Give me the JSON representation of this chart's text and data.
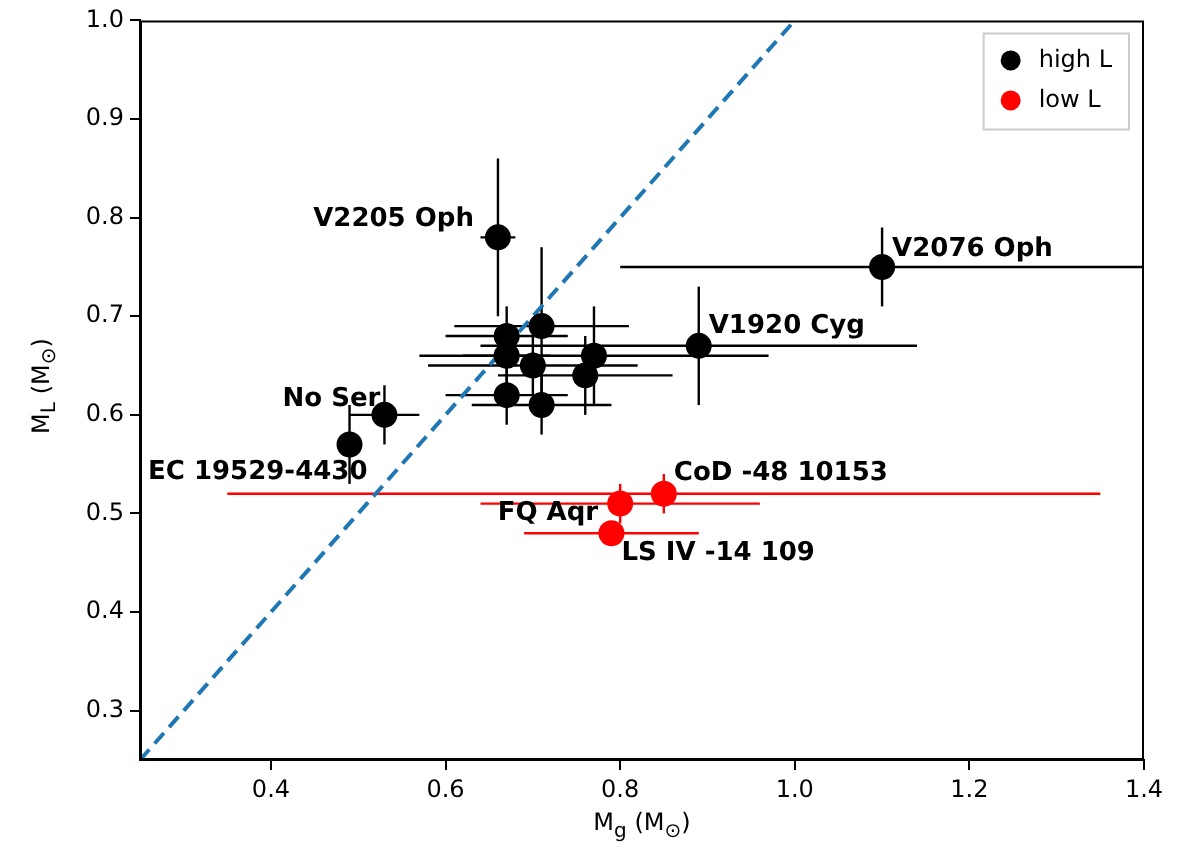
{
  "chart_data": {
    "type": "scatter",
    "xlabel": "M$_{g}$ (M$_{⊙}$)",
    "ylabel": "M$_{L}$ (M$_{⊙}$)",
    "xlim": [
      0.25,
      1.4
    ],
    "ylim": [
      0.25,
      1.0
    ],
    "xticks": [
      0.4,
      0.6,
      0.8,
      {
        "value": 1.0,
        "label": "1.0"
      },
      1.2,
      1.4
    ],
    "yticks": [
      0.3,
      0.4,
      0.5,
      0.6,
      0.7,
      0.8,
      0.9,
      {
        "value": 1.0,
        "label": "1.0"
      }
    ],
    "grid": false,
    "legend": "top right",
    "marker": "circle",
    "series": [
      {
        "name": "high L",
        "color": "#000000",
        "x": [
          0.66,
          0.49,
          0.53,
          0.67,
          0.71,
          0.67,
          0.7,
          0.76,
          0.77,
          0.67,
          0.71,
          0.89,
          1.1
        ],
        "values": [
          0.78,
          0.57,
          0.6,
          0.68,
          0.69,
          0.66,
          0.65,
          0.64,
          0.66,
          0.62,
          0.61,
          0.67,
          0.75
        ],
        "errors": [
          0.08,
          0.04,
          0.03,
          0.03,
          0.08,
          0.03,
          0.03,
          0.04,
          0.05,
          0.03,
          0.03,
          0.06,
          0.04
        ],
        "xerrors": [
          0.02,
          null,
          0.04,
          0.07,
          0.1,
          0.05,
          0.12,
          0.1,
          0.2,
          0.07,
          0.08,
          0.25,
          0.3
        ]
      },
      {
        "name": "low L",
        "color": "#ff0000",
        "x": [
          0.85,
          0.8,
          0.79
        ],
        "values": [
          0.52,
          0.51,
          0.48
        ],
        "errors": [
          0.02,
          0.02,
          null
        ],
        "xerrors": [
          0.5,
          0.16,
          0.1
        ]
      },
      {
        "type": "line",
        "color": "#1f77b4",
        "line_style": "dashed",
        "marker": "none",
        "x": [
          0.25,
          1.0
        ],
        "values": [
          0.25,
          1.0
        ]
      }
    ],
    "annotations": [
      {
        "text": "V2205 Oph",
        "x": 0.66,
        "y": 0.78
      },
      {
        "text": "V2076 Oph",
        "x": 1.1,
        "y": 0.75
      },
      {
        "text": "V1920 Cyg",
        "x": 0.89,
        "y": 0.67
      },
      {
        "text": "No Ser",
        "x": 0.53,
        "y": 0.6
      },
      {
        "text": "EC 19529-4430",
        "x": 0.49,
        "y": 0.57
      },
      {
        "text": "CoD -48 10153",
        "x": 0.85,
        "y": 0.52
      },
      {
        "text": "FQ Aqr",
        "x": 0.8,
        "y": 0.51
      },
      {
        "text": "LS IV -14 109",
        "x": 0.79,
        "y": 0.48
      }
    ]
  }
}
